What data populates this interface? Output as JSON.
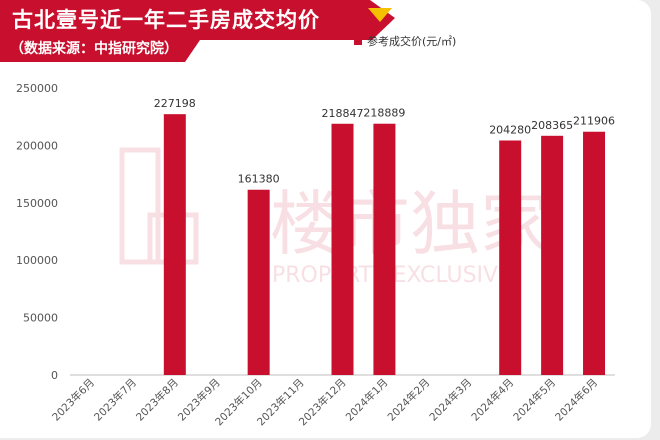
{
  "header": {
    "title": "古北壹号近一年二手房成交均价",
    "subtitle": "（数据来源：中指研究院）"
  },
  "watermark": {
    "cn": "楼市独家",
    "en": "PROPERTY EXCLUSIVE"
  },
  "colors": {
    "bar": "#c8102e",
    "banner": "#c8102e",
    "banner_accent": "#f5c000"
  },
  "chart_data": {
    "type": "bar",
    "legend": "参考成交价(元/㎡)",
    "legend_position": "top",
    "categories": [
      "2023年6月",
      "2023年7月",
      "2023年8月",
      "2023年9月",
      "2023年10月",
      "2023年11月",
      "2023年12月",
      "2024年1月",
      "2024年2月",
      "2024年3月",
      "2024年4月",
      "2024年5月",
      "2024年6月"
    ],
    "values": [
      null,
      null,
      227198,
      null,
      161380,
      null,
      218847,
      218889,
      null,
      null,
      204280,
      208365,
      211906
    ],
    "yticks": [
      0,
      50000,
      100000,
      150000,
      200000,
      250000
    ],
    "ylim": [
      0,
      250000
    ],
    "grid": false
  }
}
